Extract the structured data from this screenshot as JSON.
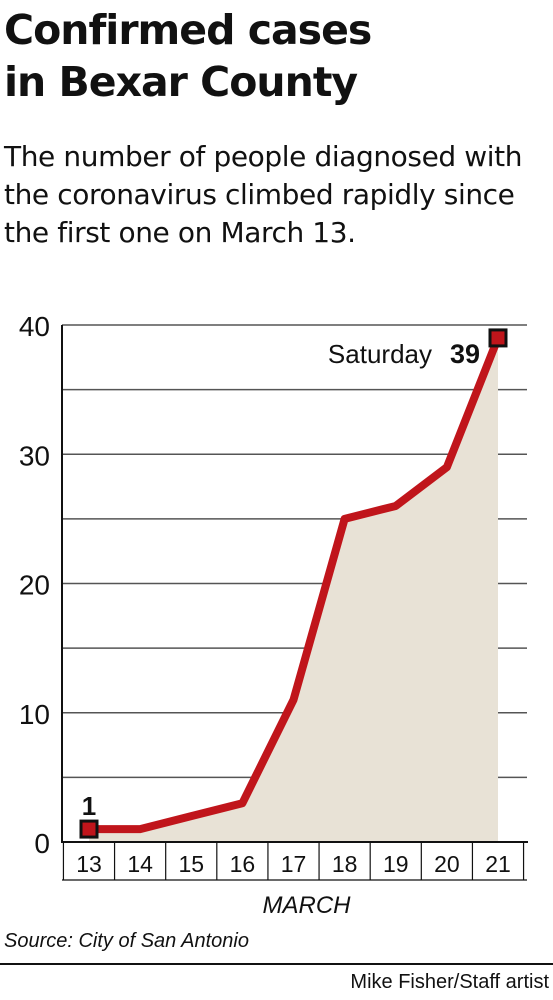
{
  "header": {
    "title_line1": "Confirmed cases",
    "title_line2": "in Bexar County",
    "subtitle": "The number of people diagnosed with the coronavirus climbed rapidly since the first one on March 13."
  },
  "chart_data": {
    "type": "area",
    "title": "Confirmed cases in Bexar County",
    "xlabel": "MARCH",
    "ylabel": "",
    "x": [
      13,
      14,
      15,
      16,
      17,
      18,
      19,
      20,
      21
    ],
    "tick_labels_x": [
      "13",
      "14",
      "15",
      "16",
      "17",
      "18",
      "19",
      "20",
      "21"
    ],
    "series": [
      {
        "values": [
          1,
          1,
          2,
          3,
          11,
          25,
          26,
          29,
          39
        ]
      }
    ],
    "ylim": [
      0,
      40
    ],
    "yticks": [
      0,
      10,
      20,
      30,
      40
    ],
    "grid": true,
    "colors": {
      "line": "#c0151b",
      "area": "#e8e2d6",
      "grid": "#555555",
      "marker_edge": "#111111"
    },
    "annotations": {
      "first": {
        "value_label": "1"
      },
      "last": {
        "label": "Saturday",
        "value_label": "39"
      }
    }
  },
  "footer": {
    "source": "Source: City of San Antonio",
    "credit": "Mike Fisher/Staff artist"
  }
}
